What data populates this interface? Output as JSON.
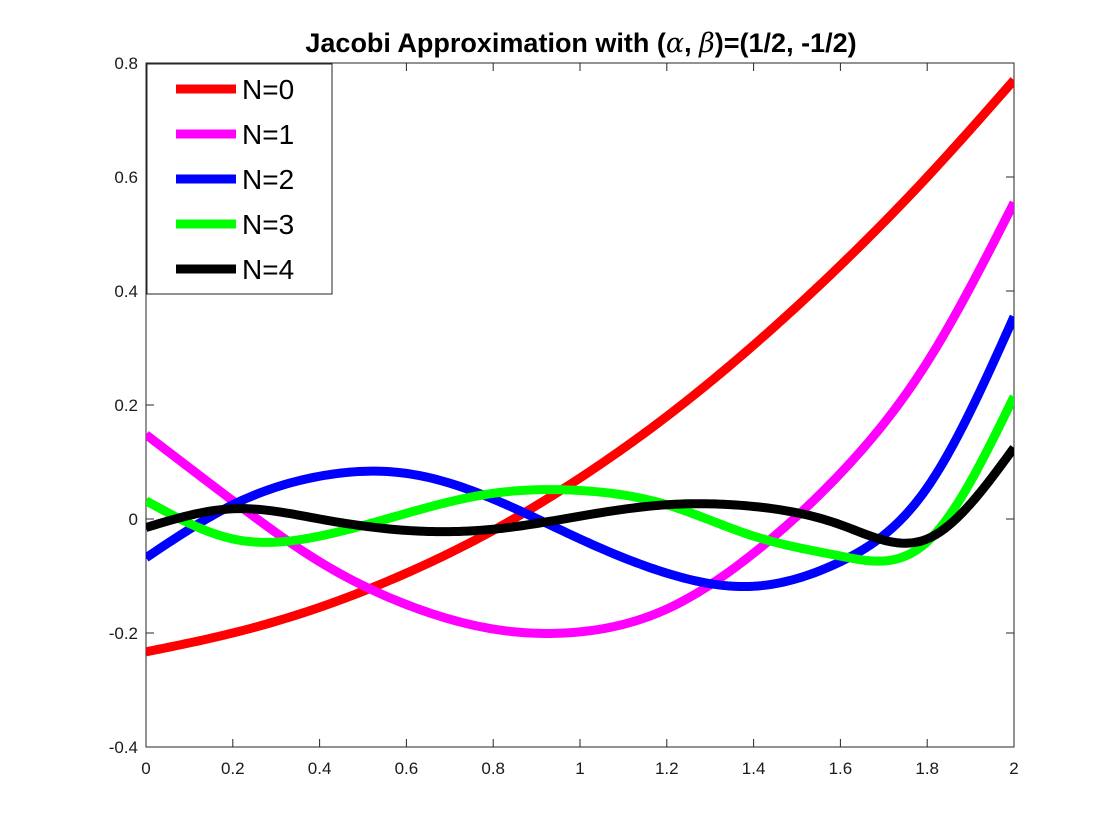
{
  "chart_data": {
    "type": "line",
    "title": {
      "prefix": "Jacobi Approximation with (",
      "alpha": "α",
      "separator": ", ",
      "beta": "β",
      "suffix": ")=(1/2, -1/2)"
    },
    "xlabel": "",
    "ylabel": "",
    "xlim": [
      0,
      2
    ],
    "ylim": [
      -0.4,
      0.8
    ],
    "x_ticks": [
      0,
      0.2,
      0.4,
      0.6,
      0.8,
      1,
      1.2,
      1.4,
      1.6,
      1.8,
      2
    ],
    "x_tick_labels": [
      "0",
      "0.2",
      "0.4",
      "0.6",
      "0.8",
      "1",
      "1.2",
      "1.4",
      "1.6",
      "1.8",
      "2"
    ],
    "y_ticks": [
      -0.4,
      -0.2,
      0,
      0.2,
      0.4,
      0.6,
      0.8
    ],
    "y_tick_labels": [
      "-0.4",
      "-0.2",
      "0",
      "0.2",
      "0.4",
      "0.6",
      "0.8"
    ],
    "grid": false,
    "legend_position": "top-left",
    "x": [
      0,
      0.2,
      0.4,
      0.6,
      0.8,
      1.0,
      1.2,
      1.4,
      1.6,
      1.8,
      2.0
    ],
    "series": [
      {
        "name": "N=0",
        "color": "#ff0000",
        "values": [
          -0.233,
          -0.2,
          -0.155,
          -0.095,
          -0.02,
          0.072,
          0.18,
          0.305,
          0.445,
          0.6,
          0.77
        ]
      },
      {
        "name": "N=1",
        "color": "#ff00ff",
        "values": [
          0.148,
          0.032,
          -0.075,
          -0.15,
          -0.193,
          -0.198,
          -0.158,
          -0.06,
          0.08,
          0.275,
          0.555
        ]
      },
      {
        "name": "N=2",
        "color": "#0000ff",
        "values": [
          -0.068,
          0.025,
          0.075,
          0.08,
          0.035,
          -0.035,
          -0.095,
          -0.118,
          -0.075,
          0.055,
          0.355
        ]
      },
      {
        "name": "N=3",
        "color": "#00ff00",
        "values": [
          0.032,
          -0.035,
          -0.03,
          0.01,
          0.045,
          0.05,
          0.025,
          -0.03,
          -0.065,
          -0.04,
          0.215
        ]
      },
      {
        "name": "N=4",
        "color": "#000000",
        "values": [
          -0.015,
          0.018,
          0.0,
          -0.02,
          -0.018,
          0.005,
          0.025,
          0.022,
          -0.01,
          -0.035,
          0.125
        ]
      }
    ]
  }
}
